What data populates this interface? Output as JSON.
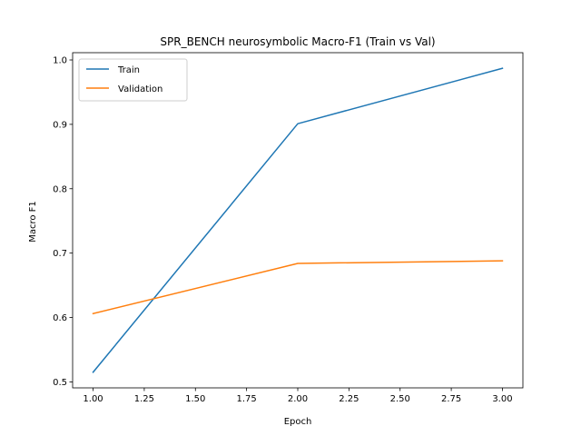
{
  "chart_data": {
    "type": "line",
    "title": "SPR_BENCH neurosymbolic Macro-F1 (Train vs Val)",
    "xlabel": "Epoch",
    "ylabel": "Macro F1",
    "x": [
      1,
      2,
      3
    ],
    "series": [
      {
        "name": "Train",
        "values": [
          0.515,
          0.901,
          0.987
        ],
        "color": "#1f77b4"
      },
      {
        "name": "Validation",
        "values": [
          0.606,
          0.684,
          0.688
        ],
        "color": "#ff7f0e"
      }
    ],
    "xlim": [
      0.9,
      3.1
    ],
    "ylim": [
      0.4907,
      1.0113
    ],
    "xticks": [
      1.0,
      1.25,
      1.5,
      1.75,
      2.0,
      2.25,
      2.5,
      2.75,
      3.0
    ],
    "xtick_labels": [
      "1.00",
      "1.25",
      "1.50",
      "1.75",
      "2.00",
      "2.25",
      "2.50",
      "2.75",
      "3.00"
    ],
    "yticks": [
      0.5,
      0.6,
      0.7,
      0.8,
      0.9,
      1.0
    ],
    "ytick_labels": [
      "0.5",
      "0.6",
      "0.7",
      "0.8",
      "0.9",
      "1.0"
    ],
    "legend_position": "upper-left",
    "grid": false
  }
}
